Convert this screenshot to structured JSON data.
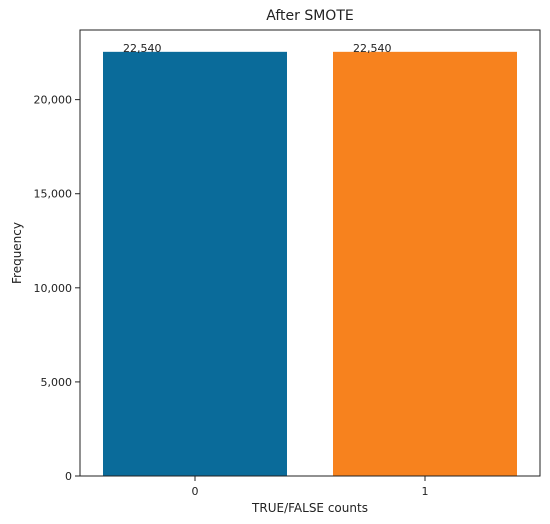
{
  "chart_data": {
    "type": "bar",
    "title": "After SMOTE",
    "xlabel": "TRUE/FALSE counts",
    "ylabel": "Frequency",
    "categories": [
      "0",
      "1"
    ],
    "values": [
      22540,
      22540
    ],
    "value_labels": [
      "22,540",
      "22,540"
    ],
    "bar_colors": [
      "#0a6b9a",
      "#f7821e"
    ],
    "ylim": [
      0,
      23700
    ],
    "yticks": [
      0,
      5000,
      10000,
      15000,
      20000
    ],
    "ytick_labels": [
      "0",
      "5,000",
      "10,000",
      "15,000",
      "20,000"
    ],
    "grid": false,
    "legend": "none"
  }
}
